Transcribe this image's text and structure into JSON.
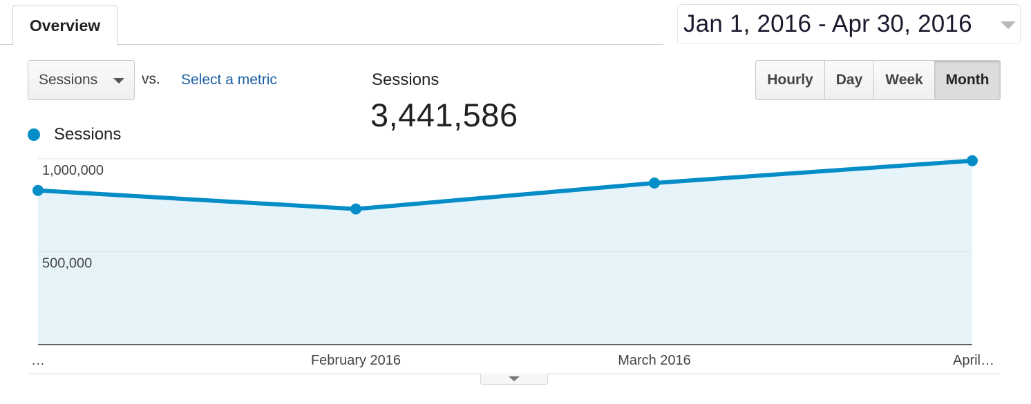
{
  "tabs": {
    "overview_label": "Overview"
  },
  "date_range": {
    "label": "Jan 1, 2016 - Apr 30, 2016"
  },
  "controls": {
    "metric_select_value": "Sessions",
    "vs_label": "vs.",
    "select_metric_link": "Select a metric",
    "granularity": [
      "Hourly",
      "Day",
      "Week",
      "Month"
    ],
    "granularity_active": "Month"
  },
  "summary": {
    "label": "Sessions",
    "value": "3,441,586"
  },
  "legend": {
    "series_label": "Sessions",
    "color": "#058dc7"
  },
  "icons": {
    "metric_select_caret": "chevron-down-icon",
    "date_range_caret": "chevron-down-icon",
    "expand_handle": "chevron-down-icon"
  },
  "chart_data": {
    "type": "area",
    "series": [
      {
        "name": "Sessions",
        "values": [
          830000,
          730000,
          870000,
          990000
        ]
      }
    ],
    "x_labels": [
      "…",
      "February 2016",
      "March 2016",
      "April…"
    ],
    "y_ticks": [
      {
        "value": 1000000,
        "label": "1,000,000"
      },
      {
        "value": 500000,
        "label": "500,000"
      }
    ],
    "ylim": [
      0,
      1000000
    ],
    "line_color": "#058dc7",
    "fill_color": "#e6f4fa",
    "grid": true
  }
}
